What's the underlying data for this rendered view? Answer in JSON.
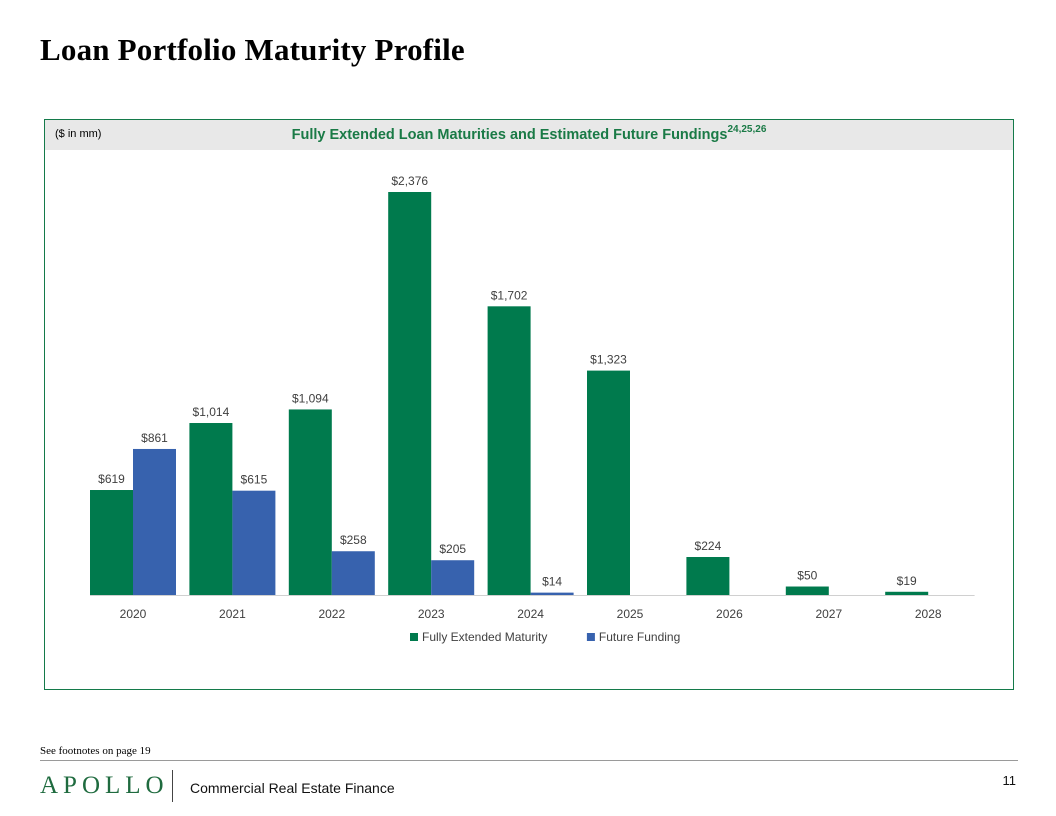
{
  "page": {
    "title": "Loan Portfolio Maturity Profile",
    "footnote": "See footnotes on page 19",
    "logo": "APOLLO",
    "division": "Commercial Real Estate Finance",
    "page_number": "11"
  },
  "chart_data": {
    "type": "bar",
    "title": "Fully Extended Loan Maturities and Estimated Future Fundings",
    "title_superscript": "24,25,26",
    "units_label": "($ in mm)",
    "xlabel": "",
    "ylabel": "",
    "ylim": [
      0,
      2376
    ],
    "grid": false,
    "legend_position": "bottom",
    "categories": [
      "2020",
      "2021",
      "2022",
      "2023",
      "2024",
      "2025",
      "2026",
      "2027",
      "2028"
    ],
    "series": [
      {
        "name": "Fully Extended Maturity",
        "color": "#007a4d",
        "values": [
          619,
          1014,
          1094,
          2376,
          1702,
          1323,
          224,
          50,
          19
        ],
        "labels": [
          "$619",
          "$1,014",
          "$1,094",
          "$2,376",
          "$1,702",
          "$1,323",
          "$224",
          "$50",
          "$19"
        ]
      },
      {
        "name": "Future Funding",
        "color": "#3762ae",
        "values": [
          861,
          615,
          258,
          205,
          14,
          null,
          null,
          null,
          null
        ],
        "labels": [
          "$861",
          "$615",
          "$258",
          "$205",
          "$14",
          "",
          "",
          "",
          ""
        ]
      }
    ]
  }
}
